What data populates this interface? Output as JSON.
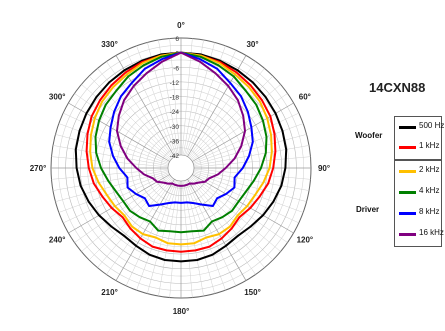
{
  "model": "14CXN88",
  "chart_data": {
    "type": "polar",
    "radial_unit": "dB",
    "radial_ticks": [
      6,
      0,
      -6,
      -12,
      -18,
      -24,
      -30,
      -36,
      -42
    ],
    "r_max": 6,
    "r_min": -42,
    "angle_ticks": [
      "0°",
      "30°",
      "60°",
      "90°",
      "120°",
      "150°",
      "180°",
      "210°",
      "240°",
      "270°",
      "300°",
      "330°"
    ],
    "grid": true,
    "legend_groups": [
      {
        "name": "Woofer",
        "entries": [
          0,
          1
        ]
      },
      {
        "name": "Driver",
        "entries": [
          2,
          3,
          4,
          5
        ]
      }
    ],
    "angles": [
      0,
      10,
      20,
      30,
      40,
      50,
      60,
      70,
      80,
      90,
      100,
      110,
      120,
      130,
      140,
      150,
      160,
      170,
      180
    ],
    "series": [
      {
        "name": "500 Hz",
        "color": "#000000",
        "values": [
          0,
          0,
          -0.5,
          -1,
          -1.5,
          -2,
          -2.5,
          -3,
          -3.5,
          -4.5,
          -5.5,
          -7,
          -8.5,
          -10,
          -11,
          -10.5,
          -9.5,
          -9,
          -9
        ]
      },
      {
        "name": "1 kHz",
        "color": "#ff0000",
        "values": [
          0,
          -0.5,
          -1,
          -2,
          -3,
          -4,
          -5,
          -6.5,
          -8,
          -9.5,
          -11,
          -13,
          -14.5,
          -16,
          -15,
          -14,
          -13,
          -13,
          -13
        ]
      },
      {
        "name": "2 kHz",
        "color": "#ffc000",
        "values": [
          0,
          -0.5,
          -1.5,
          -3,
          -4,
          -5,
          -6.5,
          -8,
          -9.5,
          -11,
          -13,
          -15,
          -16,
          -17,
          -16,
          -16,
          -17,
          -16,
          -16
        ]
      },
      {
        "name": "4 kHz",
        "color": "#008000",
        "values": [
          0,
          -1,
          -2.5,
          -4,
          -6,
          -7,
          -8.5,
          -10,
          -12,
          -14.5,
          -17,
          -19,
          -20,
          -20,
          -21,
          -22,
          -20,
          -21,
          -21
        ]
      },
      {
        "name": "8 kHz",
        "color": "#0000ff",
        "values": [
          0,
          -2,
          -4,
          -7,
          -9,
          -11.5,
          -14,
          -16,
          -19,
          -22,
          -25,
          -24,
          -26,
          -28,
          -27,
          -30,
          -32,
          -33,
          -33
        ]
      },
      {
        "name": "16 kHz",
        "color": "#800080",
        "values": [
          0,
          -3,
          -6,
          -8.5,
          -11,
          -14,
          -17,
          -21,
          -25,
          -29,
          -32,
          -35,
          -36,
          -38,
          -39,
          -40,
          -40,
          -40,
          -40
        ]
      }
    ]
  }
}
